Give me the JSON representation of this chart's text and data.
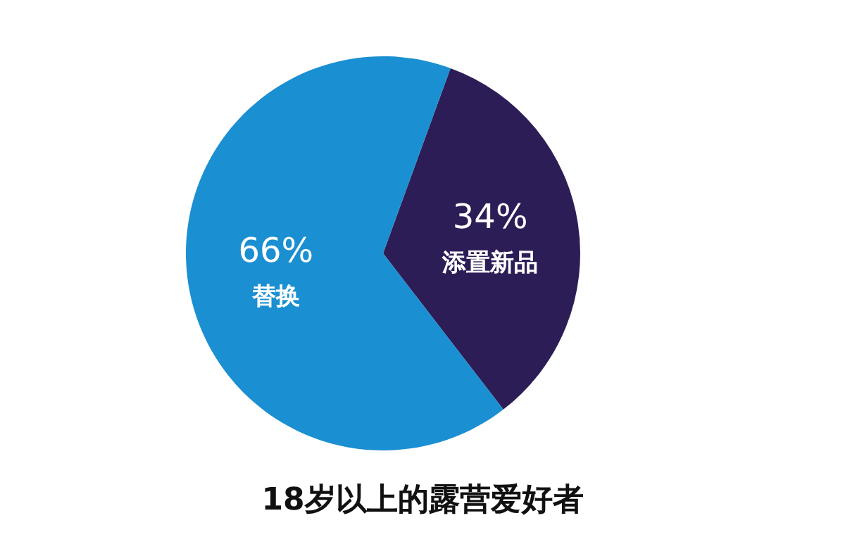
{
  "chart_data": {
    "type": "pie",
    "title": "18岁以上的露营爱好者",
    "categories": [
      "添置新品",
      "替换"
    ],
    "values": [
      34,
      66
    ],
    "colors": [
      "#2d1d57",
      "#1a8fd1"
    ],
    "value_labels": [
      "34%",
      "66%"
    ],
    "legend": false
  }
}
